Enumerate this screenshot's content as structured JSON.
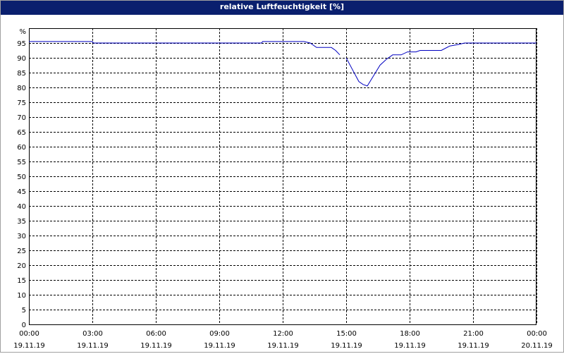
{
  "chart_data": {
    "type": "line",
    "title": "relative Luftfeuchtigkeit [%]",
    "y_unit": "%",
    "series": [
      {
        "name": "relative Luftfeuchtigkeit",
        "color": "#0000c0",
        "x": [
          0,
          3,
          3.05,
          11,
          11.05,
          13,
          13.3,
          13.6,
          14.3,
          14.5,
          14.7,
          14.8,
          15.0,
          15.3,
          15.6,
          15.8,
          16.0,
          16.3,
          16.6,
          16.9,
          17.2,
          17.6,
          17.9,
          18.3,
          18.5,
          19.5,
          19.9,
          20.3,
          20.6,
          24
        ],
        "values": [
          95.5,
          95.5,
          95,
          95,
          95.5,
          95.5,
          95,
          93.5,
          93.5,
          92.5,
          91,
          null,
          90,
          86,
          82,
          81,
          80.5,
          84,
          87.5,
          89.5,
          91,
          91,
          92,
          92,
          92.5,
          92.5,
          94,
          94.5,
          95,
          95
        ]
      }
    ],
    "xlim": [
      0,
      24
    ],
    "xticks": [
      {
        "value": 0,
        "label": "00:00",
        "date": "19.11.19"
      },
      {
        "value": 3,
        "label": "03:00",
        "date": "19.11.19"
      },
      {
        "value": 6,
        "label": "06:00",
        "date": "19.11.19"
      },
      {
        "value": 9,
        "label": "09:00",
        "date": "19.11.19"
      },
      {
        "value": 12,
        "label": "12:00",
        "date": "19.11.19"
      },
      {
        "value": 15,
        "label": "15:00",
        "date": "19.11.19"
      },
      {
        "value": 18,
        "label": "18:00",
        "date": "19.11.19"
      },
      {
        "value": 21,
        "label": "21:00",
        "date": "19.11.19"
      },
      {
        "value": 24,
        "label": "00:00",
        "date": "20.11.19"
      }
    ],
    "ylim": [
      0,
      100
    ],
    "yticks": [
      0,
      5,
      10,
      15,
      20,
      25,
      30,
      35,
      40,
      45,
      50,
      55,
      60,
      65,
      70,
      75,
      80,
      85,
      90,
      95
    ],
    "grid": true
  }
}
